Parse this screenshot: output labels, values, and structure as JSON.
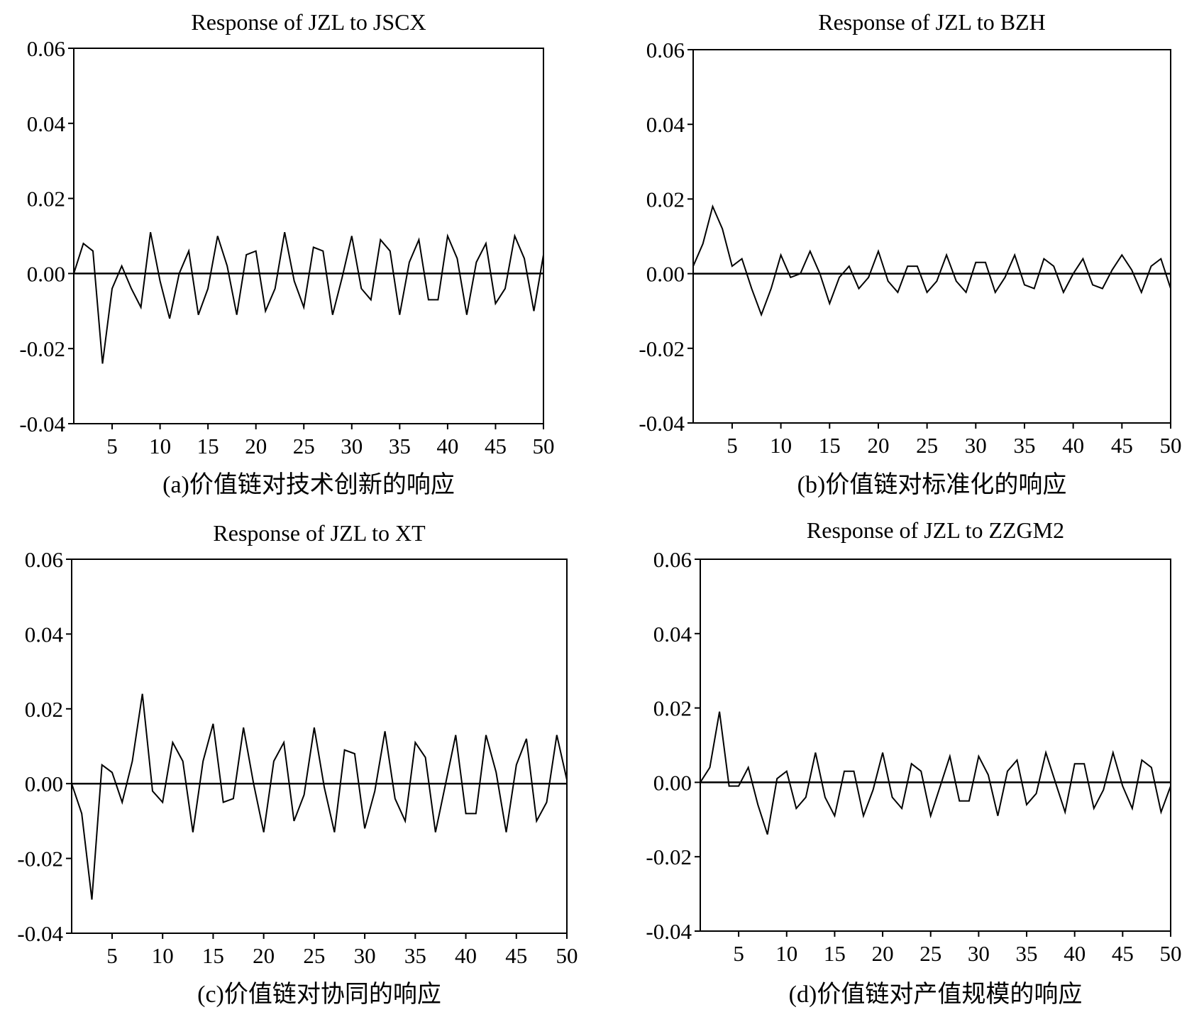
{
  "chart_data": [
    {
      "type": "line",
      "title": "Response of JZL to JSCX",
      "caption": "(a)价值链对技术创新的响应",
      "xlabel": "",
      "ylabel": "",
      "xlim": [
        1,
        50
      ],
      "ylim": [
        -0.04,
        0.06
      ],
      "xticks": [
        5,
        10,
        15,
        20,
        25,
        30,
        35,
        40,
        45,
        50
      ],
      "yticks": [
        0.06,
        0.04,
        0.02,
        0.0,
        -0.02,
        -0.04
      ],
      "ytick_labels": [
        "0.06",
        "0.04",
        "0.02",
        "0.00",
        "-0.02",
        "-0.04"
      ],
      "zero_line": true,
      "grid": false,
      "series": [
        {
          "x": [
            1,
            2,
            3,
            4,
            5,
            6,
            7,
            8,
            9,
            10,
            11,
            12,
            13,
            14,
            15,
            16,
            17,
            18,
            19,
            20,
            21,
            22,
            23,
            24,
            25,
            26,
            27,
            28,
            29,
            30,
            31,
            32,
            33,
            34,
            35,
            36,
            37,
            38,
            39,
            40,
            41,
            42,
            43,
            44,
            45,
            46,
            47,
            48,
            49,
            50
          ],
          "values": [
            0.0,
            0.008,
            0.006,
            -0.024,
            -0.004,
            0.002,
            -0.004,
            -0.009,
            0.011,
            -0.002,
            -0.012,
            0.0,
            0.006,
            -0.011,
            -0.004,
            0.01,
            0.002,
            -0.011,
            0.005,
            0.006,
            -0.01,
            -0.004,
            0.011,
            -0.002,
            -0.009,
            0.007,
            0.006,
            -0.011,
            -0.001,
            0.01,
            -0.004,
            -0.007,
            0.009,
            0.006,
            -0.011,
            0.003,
            0.009,
            -0.007,
            -0.007,
            0.01,
            0.004,
            -0.011,
            0.003,
            0.008,
            -0.008,
            -0.004,
            0.01,
            0.004,
            -0.01,
            0.005
          ]
        }
      ]
    },
    {
      "type": "line",
      "title": "Response of JZL to BZH",
      "caption": "(b)价值链对标准化的响应",
      "xlabel": "",
      "ylabel": "",
      "xlim": [
        1,
        50
      ],
      "ylim": [
        -0.04,
        0.06
      ],
      "xticks": [
        5,
        10,
        15,
        20,
        25,
        30,
        35,
        40,
        45,
        50
      ],
      "yticks": [
        0.06,
        0.04,
        0.02,
        0.0,
        -0.02,
        -0.04
      ],
      "ytick_labels": [
        "0.06",
        "0.04",
        "0.02",
        "0.00",
        "-0.02",
        "-0.04"
      ],
      "zero_line": true,
      "grid": false,
      "series": [
        {
          "x": [
            1,
            2,
            3,
            4,
            5,
            6,
            7,
            8,
            9,
            10,
            11,
            12,
            13,
            14,
            15,
            16,
            17,
            18,
            19,
            20,
            21,
            22,
            23,
            24,
            25,
            26,
            27,
            28,
            29,
            30,
            31,
            32,
            33,
            34,
            35,
            36,
            37,
            38,
            39,
            40,
            41,
            42,
            43,
            44,
            45,
            46,
            47,
            48,
            49,
            50
          ],
          "values": [
            0.002,
            0.008,
            0.018,
            0.012,
            0.002,
            0.004,
            -0.004,
            -0.011,
            -0.004,
            0.005,
            -0.001,
            0.0,
            0.006,
            0.0,
            -0.008,
            -0.001,
            0.002,
            -0.004,
            -0.001,
            0.006,
            -0.002,
            -0.005,
            0.002,
            0.002,
            -0.005,
            -0.002,
            0.005,
            -0.002,
            -0.005,
            0.003,
            0.003,
            -0.005,
            -0.001,
            0.005,
            -0.003,
            -0.004,
            0.004,
            0.002,
            -0.005,
            0.0,
            0.004,
            -0.003,
            -0.004,
            0.001,
            0.005,
            0.001,
            -0.005,
            0.002,
            0.004,
            -0.004
          ]
        }
      ]
    },
    {
      "type": "line",
      "title": "Response of JZL to XT",
      "caption": "(c)价值链对协同的响应",
      "xlabel": "",
      "ylabel": "",
      "xlim": [
        1,
        50
      ],
      "ylim": [
        -0.04,
        0.06
      ],
      "xticks": [
        5,
        10,
        15,
        20,
        25,
        30,
        35,
        40,
        45,
        50
      ],
      "yticks": [
        0.06,
        0.04,
        0.02,
        0.0,
        -0.02,
        -0.04
      ],
      "ytick_labels": [
        "0.06",
        "0.04",
        "0.02",
        "0.00",
        "-0.02",
        "-0.04"
      ],
      "zero_line": true,
      "grid": false,
      "series": [
        {
          "x": [
            1,
            2,
            3,
            4,
            5,
            6,
            7,
            8,
            9,
            10,
            11,
            12,
            13,
            14,
            15,
            16,
            17,
            18,
            19,
            20,
            21,
            22,
            23,
            24,
            25,
            26,
            27,
            28,
            29,
            30,
            31,
            32,
            33,
            34,
            35,
            36,
            37,
            38,
            39,
            40,
            41,
            42,
            43,
            44,
            45,
            46,
            47,
            48,
            49,
            50
          ],
          "values": [
            0.0,
            -0.008,
            -0.031,
            0.005,
            0.003,
            -0.005,
            0.006,
            0.024,
            -0.002,
            -0.005,
            0.011,
            0.006,
            -0.013,
            0.006,
            0.016,
            -0.005,
            -0.004,
            0.015,
            0.0,
            -0.013,
            0.006,
            0.011,
            -0.01,
            -0.003,
            0.015,
            -0.001,
            -0.013,
            0.009,
            0.008,
            -0.012,
            -0.002,
            0.014,
            -0.004,
            -0.01,
            0.011,
            0.007,
            -0.013,
            0.0,
            0.013,
            -0.008,
            -0.008,
            0.013,
            0.003,
            -0.013,
            0.005,
            0.012,
            -0.01,
            -0.005,
            0.013,
            0.001
          ]
        }
      ]
    },
    {
      "type": "line",
      "title": "Response of JZL to ZZGM2",
      "caption": "(d)价值链对产值规模的响应",
      "xlabel": "",
      "ylabel": "",
      "xlim": [
        1,
        50
      ],
      "ylim": [
        -0.04,
        0.06
      ],
      "xticks": [
        5,
        10,
        15,
        20,
        25,
        30,
        35,
        40,
        45,
        50
      ],
      "yticks": [
        0.06,
        0.04,
        0.02,
        0.0,
        -0.02,
        -0.04
      ],
      "ytick_labels": [
        "0.06",
        "0.04",
        "0.02",
        "0.00",
        "-0.02",
        "-0.04"
      ],
      "zero_line": true,
      "grid": false,
      "series": [
        {
          "x": [
            1,
            2,
            3,
            4,
            5,
            6,
            7,
            8,
            9,
            10,
            11,
            12,
            13,
            14,
            15,
            16,
            17,
            18,
            19,
            20,
            21,
            22,
            23,
            24,
            25,
            26,
            27,
            28,
            29,
            30,
            31,
            32,
            33,
            34,
            35,
            36,
            37,
            38,
            39,
            40,
            41,
            42,
            43,
            44,
            45,
            46,
            47,
            48,
            49,
            50
          ],
          "values": [
            0.0,
            0.004,
            0.019,
            -0.001,
            -0.001,
            0.004,
            -0.006,
            -0.014,
            0.001,
            0.003,
            -0.007,
            -0.004,
            0.008,
            -0.004,
            -0.009,
            0.003,
            0.003,
            -0.009,
            -0.002,
            0.008,
            -0.004,
            -0.007,
            0.005,
            0.003,
            -0.009,
            -0.001,
            0.007,
            -0.005,
            -0.005,
            0.007,
            0.002,
            -0.009,
            0.003,
            0.006,
            -0.006,
            -0.003,
            0.008,
            0.0,
            -0.008,
            0.005,
            0.005,
            -0.007,
            -0.002,
            0.008,
            -0.001,
            -0.007,
            0.006,
            0.004,
            -0.008,
            -0.001
          ]
        }
      ]
    }
  ]
}
